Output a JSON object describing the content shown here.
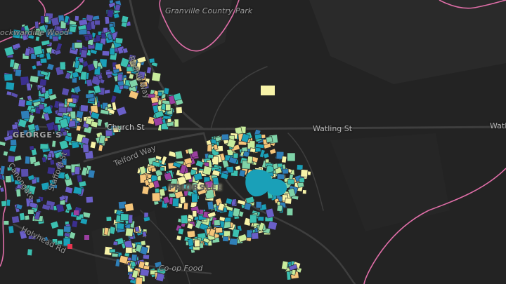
{
  "map": {
    "background": "#232323",
    "road_color": "#3e3e3e",
    "boundary_color": "#e06ea8",
    "palette": [
      "#3b2f8f",
      "#5a4fb0",
      "#6a5fc8",
      "#2f7fb8",
      "#1aa0b8",
      "#3cc0b0",
      "#7fd3a8",
      "#c8ec9c",
      "#f7f3a8",
      "#f5c57a",
      "#9b3fa0",
      "#e8344e"
    ],
    "labels": {
      "granville_country_park": "Granville Country Park",
      "rockwardine_wood": "ockwardine Wood",
      "redhill_way": "Redhill Way",
      "church_st": "Church St",
      "watling_st": "Watling St",
      "watl_edge": "Watl",
      "georges": "GEORGE'S",
      "telford_way": "Telford Way",
      "stafford_st": "Stafford St",
      "canongate": "Canongate",
      "priorslee": "PRIORSLEE",
      "holyhead_rd": "Holyhead Rd",
      "coop_food": "Co-op Food"
    }
  }
}
